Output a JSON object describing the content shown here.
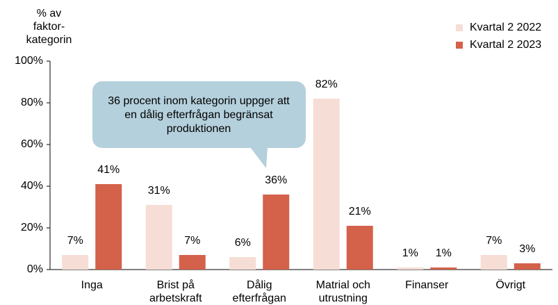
{
  "chart_data": {
    "type": "bar",
    "y_label": "% av faktor-kategorin",
    "categories": [
      "Inga",
      "Brist på arbetskraft",
      "Dålig efterfrågan",
      "Matrial och utrustning",
      "Finanser",
      "Övrigt"
    ],
    "series": [
      {
        "name": "Kvartal 2 2022",
        "color": "#f6ddd5",
        "values": [
          7,
          31,
          6,
          82,
          1,
          7
        ],
        "value_labels": [
          "7%",
          "31%",
          "6%",
          "82%",
          "1%",
          "7%"
        ]
      },
      {
        "name": "Kvartal 2 2023",
        "color": "#d4614a",
        "values": [
          41,
          7,
          36,
          21,
          1,
          3
        ],
        "value_labels": [
          "41%",
          "7%",
          "36%",
          "21%",
          "1%",
          "3%"
        ]
      }
    ],
    "ylim": [
      0,
      100
    ],
    "yticks": [
      {
        "value": 0,
        "label": "0%"
      },
      {
        "value": 20,
        "label": "20%"
      },
      {
        "value": 40,
        "label": "40%"
      },
      {
        "value": 60,
        "label": "60%"
      },
      {
        "value": 80,
        "label": "80%"
      },
      {
        "value": 100,
        "label": "100%"
      }
    ],
    "legend": "top-right",
    "annotation": "36 procent inom kategorin uppger att en dålig efterfrågan begränsat produktionen"
  }
}
